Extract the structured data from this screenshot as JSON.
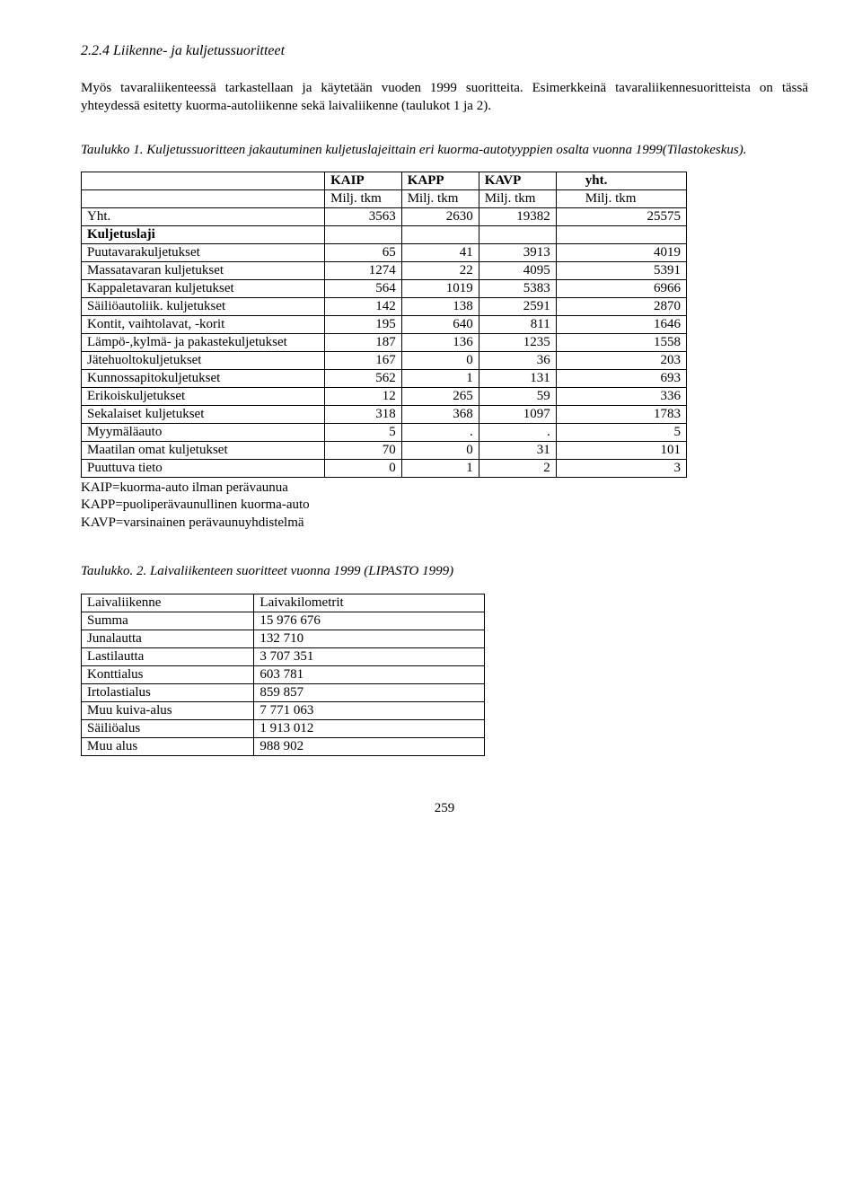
{
  "heading": "2.2.4 Liikenne- ja kuljetussuoritteet",
  "para1": "Myös tavaraliikenteessä tarkastellaan ja käytetään vuoden 1999 suoritteita. Esimerkkeinä tavaraliikennesuoritteista on tässä yhteydessä esitetty kuorma-autoliikenne sekä laivaliikenne (taulukot 1 ja 2).",
  "table1": {
    "caption": "Taulukko 1. Kuljetussuoritteen jakautuminen kuljetuslajeittain eri kuorma-autotyyppien osalta vuonna 1999(Tilastokeskus).",
    "header": {
      "c1": "KAIP",
      "c2": "KAPP",
      "c3": "KAVP",
      "c4": "yht."
    },
    "subheader": {
      "c1": "Milj. tkm",
      "c2": "Milj. tkm",
      "c3": "Milj. tkm",
      "c4": "Milj. tkm"
    },
    "yht_label": "Yht.",
    "yht": {
      "c1": "3563",
      "c2": "2630",
      "c3": "19382",
      "c4": "25575"
    },
    "kuljetuslaji": "Kuljetuslaji",
    "rows": [
      {
        "label": "Puutavarakuljetukset",
        "c1": "65",
        "c2": "41",
        "c3": "3913",
        "c4": "4019"
      },
      {
        "label": "Massatavaran kuljetukset",
        "c1": "1274",
        "c2": "22",
        "c3": "4095",
        "c4": "5391"
      },
      {
        "label": "Kappaletavaran kuljetukset",
        "c1": "564",
        "c2": "1019",
        "c3": "5383",
        "c4": "6966"
      },
      {
        "label": "Säiliöautoliik. kuljetukset",
        "c1": "142",
        "c2": "138",
        "c3": "2591",
        "c4": "2870"
      },
      {
        "label": "Kontit, vaihtolavat, -korit",
        "c1": "195",
        "c2": "640",
        "c3": "811",
        "c4": "1646"
      },
      {
        "label": "Lämpö-,kylmä- ja pakastekuljetukset",
        "c1": "187",
        "c2": "136",
        "c3": "1235",
        "c4": "1558"
      },
      {
        "label": "Jätehuoltokuljetukset",
        "c1": "167",
        "c2": "0",
        "c3": "36",
        "c4": "203"
      },
      {
        "label": "Kunnossapitokuljetukset",
        "c1": "562",
        "c2": "1",
        "c3": "131",
        "c4": "693"
      },
      {
        "label": "Erikoiskuljetukset",
        "c1": "12",
        "c2": "265",
        "c3": "59",
        "c4": "336"
      },
      {
        "label": "Sekalaiset kuljetukset",
        "c1": "318",
        "c2": "368",
        "c3": "1097",
        "c4": "1783"
      },
      {
        "label": "Myymäläauto",
        "c1": "5",
        "c2": ".",
        "c3": ".",
        "c4": "5"
      },
      {
        "label": "Maatilan omat kuljetukset",
        "c1": "70",
        "c2": "0",
        "c3": "31",
        "c4": "101"
      },
      {
        "label": "Puuttuva tieto",
        "c1": "0",
        "c2": "1",
        "c3": "2",
        "c4": "3"
      }
    ]
  },
  "legend": {
    "l1": "KAIP=kuorma-auto ilman perävaunua",
    "l2": "KAPP=puoliperävaunullinen kuorma-auto",
    "l3": "KAVP=varsinainen perävaunuyhdistelmä"
  },
  "table2": {
    "caption": "Taulukko. 2. Laivaliikenteen suoritteet vuonna 1999 (LIPASTO 1999)",
    "header": {
      "c1": "Laivaliikenne",
      "c2": "Laivakilometrit"
    },
    "rows": [
      {
        "c1": "Summa",
        "c2": "15 976 676"
      },
      {
        "c1": "Junalautta",
        "c2": "132 710"
      },
      {
        "c1": "Lastilautta",
        "c2": "3 707 351"
      },
      {
        "c1": "Konttialus",
        "c2": "603 781"
      },
      {
        "c1": "Irtolastialus",
        "c2": "859 857"
      },
      {
        "c1": "Muu kuiva-alus",
        "c2": "7 771 063"
      },
      {
        "c1": "Säiliöalus",
        "c2": "1 913 012"
      },
      {
        "c1": "Muu alus",
        "c2": "988 902"
      }
    ]
  },
  "page_number": "259"
}
